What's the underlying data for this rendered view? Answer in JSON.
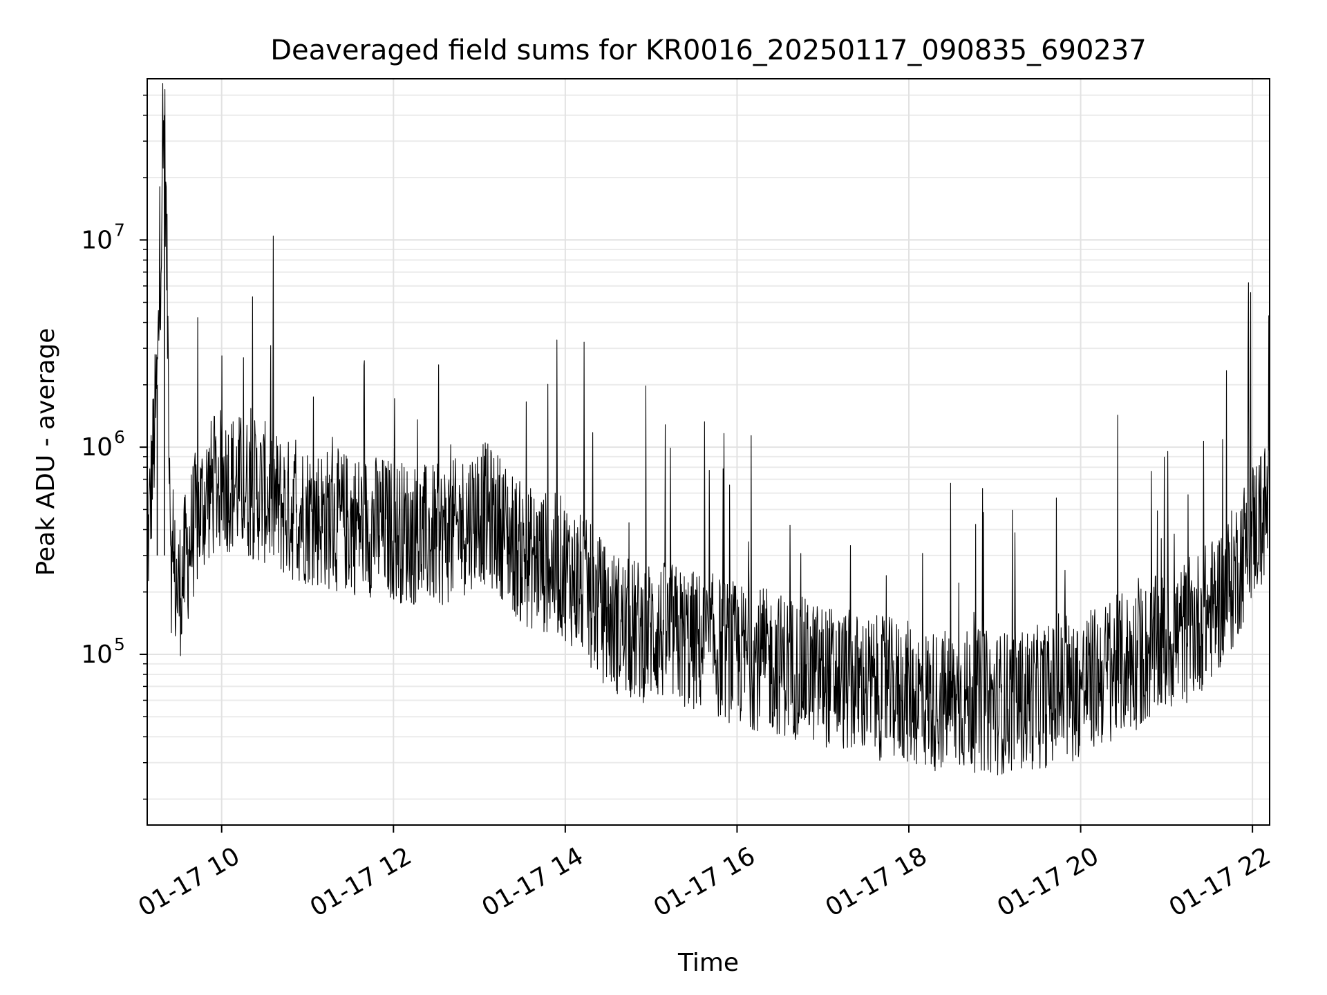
{
  "chart_data": {
    "type": "line",
    "title": "Deaveraged field sums for KR0016_20250117_090835_690237",
    "xlabel": "Time",
    "ylabel": "Peak ADU - average",
    "x_range": [
      "2025-01-17T09:08",
      "2025-01-17T22:12"
    ],
    "x_ticks": [
      {
        "x": "2025-01-17T10:00",
        "label": "01-17 10"
      },
      {
        "x": "2025-01-17T12:00",
        "label": "01-17 12"
      },
      {
        "x": "2025-01-17T14:00",
        "label": "01-17 14"
      },
      {
        "x": "2025-01-17T16:00",
        "label": "01-17 16"
      },
      {
        "x": "2025-01-17T18:00",
        "label": "01-17 18"
      },
      {
        "x": "2025-01-17T20:00",
        "label": "01-17 20"
      },
      {
        "x": "2025-01-17T22:00",
        "label": "01-17 22"
      }
    ],
    "y_scale": "log",
    "ylim": [
      15000,
      60000000
    ],
    "y_ticks": [
      {
        "value": 100000,
        "base": "10",
        "exp": "5"
      },
      {
        "value": 1000000,
        "base": "10",
        "exp": "6"
      },
      {
        "value": 10000000,
        "base": "10",
        "exp": "7"
      }
    ],
    "grid": true,
    "line_color": "#000000",
    "series": [
      {
        "x": [
          "2025-01-17T09:08",
          "2025-01-17T09:15",
          "2025-01-17T09:20",
          "2025-01-17T09:25",
          "2025-01-17T09:30",
          "2025-01-17T09:40",
          "2025-01-17T09:50",
          "2025-01-17T10:00",
          "2025-01-17T10:15",
          "2025-01-17T10:30",
          "2025-01-17T10:45",
          "2025-01-17T11:00",
          "2025-01-17T11:15",
          "2025-01-17T11:30",
          "2025-01-17T11:45",
          "2025-01-17T12:00",
          "2025-01-17T12:15",
          "2025-01-17T12:30",
          "2025-01-17T12:45",
          "2025-01-17T13:00",
          "2025-01-17T13:15",
          "2025-01-17T13:30",
          "2025-01-17T13:45",
          "2025-01-17T14:00",
          "2025-01-17T14:15",
          "2025-01-17T14:30",
          "2025-01-17T14:45",
          "2025-01-17T15:00",
          "2025-01-17T15:15",
          "2025-01-17T15:30",
          "2025-01-17T15:45",
          "2025-01-17T16:00",
          "2025-01-17T16:15",
          "2025-01-17T16:30",
          "2025-01-17T16:45",
          "2025-01-17T17:00",
          "2025-01-17T17:15",
          "2025-01-17T17:30",
          "2025-01-17T17:45",
          "2025-01-17T18:00",
          "2025-01-17T18:15",
          "2025-01-17T18:30",
          "2025-01-17T18:45",
          "2025-01-17T19:00",
          "2025-01-17T19:15",
          "2025-01-17T19:30",
          "2025-01-17T19:45",
          "2025-01-17T20:00",
          "2025-01-17T20:15",
          "2025-01-17T20:30",
          "2025-01-17T20:45",
          "2025-01-17T21:00",
          "2025-01-17T21:15",
          "2025-01-17T21:30",
          "2025-01-17T21:45",
          "2025-01-17T22:00",
          "2025-01-17T22:12"
        ],
        "values": [
          300000,
          2000000,
          40000000,
          250000,
          200000,
          400000,
          600000,
          700000,
          650000,
          600000,
          500000,
          480000,
          450000,
          430000,
          420000,
          400000,
          380000,
          370000,
          400000,
          500000,
          420000,
          300000,
          280000,
          260000,
          200000,
          150000,
          130000,
          130000,
          125000,
          115000,
          110000,
          100000,
          95000,
          90000,
          85000,
          80000,
          75000,
          70000,
          68000,
          65000,
          60000,
          60000,
          60000,
          58000,
          60000,
          62000,
          65000,
          70000,
          80000,
          90000,
          100000,
          115000,
          130000,
          160000,
          220000,
          400000,
          520000
        ]
      }
    ]
  }
}
